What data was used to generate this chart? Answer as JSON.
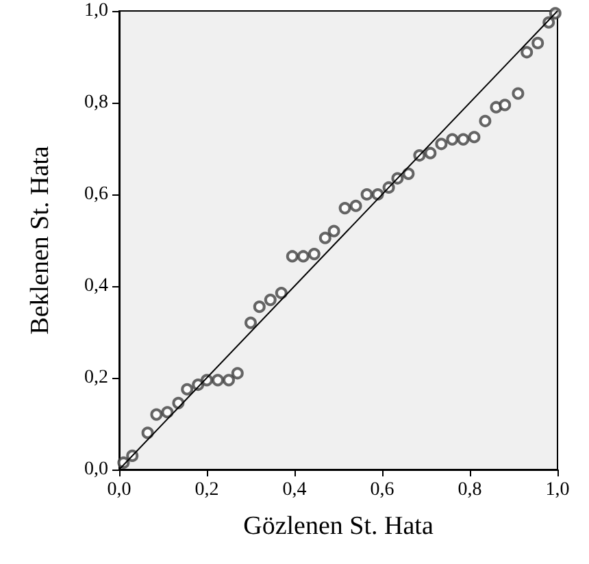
{
  "chart_data": {
    "type": "scatter",
    "xlabel": "Gözlenen St. Hata",
    "ylabel": "Beklenen St. Hata",
    "xlim": [
      0,
      1
    ],
    "ylim": [
      0,
      1
    ],
    "xticks": [
      {
        "value": 0,
        "label": "0,0"
      },
      {
        "value": 0.2,
        "label": "0,2"
      },
      {
        "value": 0.4,
        "label": "0,4"
      },
      {
        "value": 0.6,
        "label": "0,6"
      },
      {
        "value": 0.8,
        "label": "0,8"
      },
      {
        "value": 1,
        "label": "1,0"
      }
    ],
    "yticks": [
      {
        "value": 0,
        "label": "0,0"
      },
      {
        "value": 0.2,
        "label": "0,2"
      },
      {
        "value": 0.4,
        "label": "0,4"
      },
      {
        "value": 0.6,
        "label": "0,6"
      },
      {
        "value": 0.8,
        "label": "0,8"
      },
      {
        "value": 1,
        "label": "1,0"
      }
    ],
    "grid": false,
    "marker": "circle",
    "series": [
      {
        "type": "scatter",
        "color": "#404040",
        "x": [
          0.01,
          0.03,
          0.065,
          0.085,
          0.11,
          0.135,
          0.155,
          0.18,
          0.2,
          0.225,
          0.25,
          0.27,
          0.3,
          0.32,
          0.345,
          0.37,
          0.395,
          0.42,
          0.445,
          0.47,
          0.49,
          0.515,
          0.54,
          0.565,
          0.59,
          0.615,
          0.635,
          0.66,
          0.685,
          0.71,
          0.735,
          0.76,
          0.785,
          0.81,
          0.835,
          0.86,
          0.88,
          0.91,
          0.93,
          0.955,
          0.98,
          0.995
        ],
        "values": [
          0.015,
          0.03,
          0.08,
          0.12,
          0.125,
          0.145,
          0.175,
          0.185,
          0.195,
          0.195,
          0.195,
          0.21,
          0.32,
          0.355,
          0.37,
          0.385,
          0.465,
          0.465,
          0.47,
          0.505,
          0.52,
          0.57,
          0.575,
          0.6,
          0.6,
          0.615,
          0.635,
          0.645,
          0.685,
          0.69,
          0.71,
          0.72,
          0.72,
          0.725,
          0.76,
          0.79,
          0.795,
          0.82,
          0.91,
          0.93,
          0.975,
          0.995
        ]
      },
      {
        "type": "line",
        "color": "#000000",
        "x": [
          0,
          1
        ],
        "values": [
          0,
          1
        ],
        "line_style": "solid",
        "marker": "none"
      }
    ]
  }
}
